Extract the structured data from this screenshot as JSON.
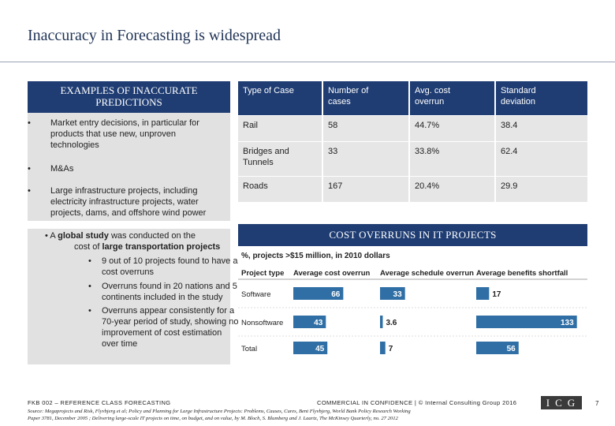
{
  "title": "Inaccuracy in Forecasting is widespread",
  "left_panel": {
    "heading_line1": "EXAMPLES OF INACCURATE",
    "heading_line2": "PREDICTIONS",
    "bullet_char": "•",
    "bullets": [
      {
        "lines": [
          "Market entry decisions, in particular for",
          "products that use new, unproven",
          "technologies"
        ]
      },
      {
        "lines": [
          "M&As"
        ]
      },
      {
        "lines": [
          "Large infrastructure projects, including",
          "electricity infrastructure projects, water",
          "projects, dams, and offshore wind power"
        ]
      }
    ]
  },
  "study": {
    "bullet_char": "•",
    "prefix": "A ",
    "bold1": "global study",
    "mid": " was conducted on the",
    "prefix2": "cost of ",
    "bold2": "large transportation projects",
    "sub_bullet": "•",
    "subs": [
      {
        "lines": [
          "9 out of 10 projects found to have a",
          "cost overruns"
        ]
      },
      {
        "lines": [
          "Overruns found in 20 nations and 5",
          "continents included in the study"
        ]
      },
      {
        "lines": [
          "Overruns appear consistently for a",
          "70-year period of study, showing no",
          "improvement of cost estimation",
          "over time"
        ]
      }
    ]
  },
  "table": {
    "headers": [
      [
        "Type of Case"
      ],
      [
        "Number of",
        "cases"
      ],
      [
        "Avg. cost",
        "overrun"
      ],
      [
        "Standard",
        "deviation"
      ]
    ],
    "rows": [
      [
        [
          "Rail"
        ],
        [
          "58"
        ],
        [
          "44.7%"
        ],
        [
          "38.4"
        ]
      ],
      [
        [
          "Bridges and",
          "Tunnels"
        ],
        [
          "33"
        ],
        [
          "33.8%"
        ],
        [
          "62.4"
        ]
      ],
      [
        [
          "Roads"
        ],
        [
          "167"
        ],
        [
          "20.4%"
        ],
        [
          "29.9"
        ]
      ]
    ]
  },
  "cost_title": "COST OVERRUNS IN IT PROJECTS",
  "chart_data": {
    "type": "bar",
    "title": "COST OVERRUNS IN IT PROJECTS",
    "subtitle": "%, projects >$15 million, in 2010 dollars",
    "category_header": "Project type",
    "categories": [
      "Software",
      "Nonsoftware",
      "Total"
    ],
    "series": [
      {
        "name": "Average cost overrun",
        "values": [
          66,
          43,
          45
        ],
        "color": "#2f6fa5"
      },
      {
        "name": "Average schedule overrun",
        "values": [
          33,
          3.6,
          7
        ],
        "color": "#2f6fa5"
      },
      {
        "name": "Average benefits shortfall",
        "values": [
          17,
          133,
          56
        ],
        "color": "#2f6fa5"
      }
    ]
  },
  "footer": {
    "left": "FKB 002 – REFERENCE CLASS FORECASTING",
    "mid": "COMMERCIAL IN CONFIDENCE  |  © Internal Consulting Group 2016",
    "source_line1": "Source: Megaprojects and Risk, Flyvbjerg et al; Policy and Planning for Large Infrastructure Projects: Problems, Causes, Cures, Bent Flyvbjerg, World Bank Policy Research Working",
    "source_line2": "Paper 3781, December 2005 ; Delivering large-scale IT projects on time, on budget, and on value, by M. Bloch, S. Blumberg and J. Laartz, The McKinsey Quarterly, no. 27 2012",
    "logo": "ICG",
    "page": "7"
  }
}
